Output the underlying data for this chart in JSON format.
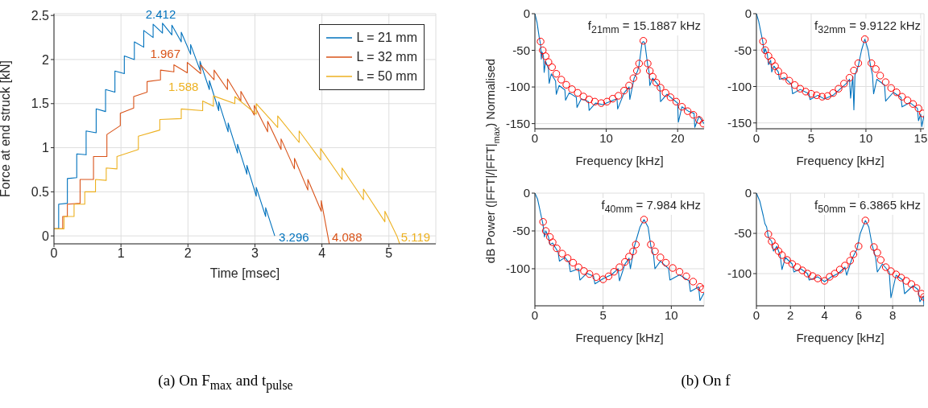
{
  "chart_data": [
    {
      "type": "line",
      "xlabel": "Time [msec]",
      "ylabel": "Force at end struck [kN]",
      "xlim": [
        0,
        5.7
      ],
      "xticks": [
        0,
        1,
        2,
        3,
        4,
        5
      ],
      "ylim": [
        -0.09,
        2.52
      ],
      "yticks": [
        0,
        0.5,
        1,
        1.5,
        2,
        2.5
      ],
      "grid": true,
      "legend": "top right",
      "series": [
        {
          "name": "L = 21 mm",
          "color": "#0072bd",
          "x": [
            0,
            0.07,
            0.07,
            0.2,
            0.2,
            0.34,
            0.34,
            0.48,
            0.48,
            0.63,
            0.63,
            0.77,
            0.77,
            0.91,
            0.91,
            1.05,
            1.05,
            1.2,
            1.2,
            1.34,
            1.34,
            1.48,
            1.48,
            1.62,
            1.62,
            1.76,
            1.76,
            1.9,
            1.9,
            2.04,
            2.04,
            2.18,
            2.18,
            2.32,
            2.32,
            2.46,
            2.46,
            2.6,
            2.6,
            2.74,
            2.74,
            2.88,
            2.88,
            3.02,
            3.02,
            3.16,
            3.16,
            3.296
          ],
          "values": [
            0.08,
            0.08,
            0.36,
            0.37,
            0.65,
            0.66,
            0.93,
            0.92,
            1.19,
            1.17,
            1.44,
            1.41,
            1.66,
            1.63,
            1.87,
            1.84,
            2.04,
            2.0,
            2.2,
            2.14,
            2.33,
            2.25,
            2.4,
            2.3,
            2.412,
            2.28,
            2.39,
            2.2,
            2.31,
            2.06,
            2.17,
            1.88,
            1.98,
            1.66,
            1.76,
            1.42,
            1.52,
            1.18,
            1.28,
            0.94,
            1.04,
            0.7,
            0.8,
            0.45,
            0.55,
            0.22,
            0.32,
            0
          ]
        },
        {
          "name": "L = 32 mm",
          "color": "#d95319",
          "x": [
            0,
            0.13,
            0.13,
            0.2,
            0.2,
            0.39,
            0.39,
            0.59,
            0.59,
            0.79,
            0.79,
            0.99,
            0.99,
            1.19,
            1.19,
            1.39,
            1.39,
            1.59,
            1.59,
            1.79,
            1.79,
            1.99,
            1.99,
            2.19,
            2.19,
            2.39,
            2.39,
            2.59,
            2.59,
            2.79,
            2.79,
            2.99,
            2.99,
            3.19,
            3.19,
            3.39,
            3.39,
            3.59,
            3.59,
            3.79,
            3.79,
            3.99,
            3.99,
            4.088,
            4.11
          ],
          "values": [
            0.08,
            0.08,
            0.22,
            0.22,
            0.36,
            0.37,
            0.64,
            0.64,
            0.9,
            0.9,
            1.15,
            1.25,
            1.39,
            1.45,
            1.58,
            1.63,
            1.75,
            1.77,
            1.88,
            1.86,
            1.94,
            1.85,
            1.967,
            1.84,
            1.94,
            1.77,
            1.88,
            1.66,
            1.78,
            1.53,
            1.64,
            1.37,
            1.48,
            1.18,
            1.3,
            0.98,
            1.1,
            0.76,
            0.88,
            0.52,
            0.64,
            0.28,
            0.4,
            0,
            -0.09
          ]
        },
        {
          "name": "L = 50 mm",
          "color": "#edb120",
          "x": [
            0,
            0.15,
            0.15,
            0.3,
            0.3,
            0.46,
            0.46,
            0.62,
            0.62,
            0.78,
            0.78,
            0.94,
            0.94,
            1.26,
            1.26,
            1.58,
            1.58,
            1.9,
            1.9,
            2.22,
            2.22,
            2.38,
            2.38,
            2.7,
            2.7,
            3.02,
            3.02,
            3.34,
            3.34,
            3.66,
            3.66,
            3.98,
            3.98,
            4.3,
            4.3,
            4.62,
            4.62,
            4.94,
            4.94,
            5.119,
            5.16
          ],
          "values": [
            0.08,
            0.08,
            0.22,
            0.22,
            0.36,
            0.36,
            0.5,
            0.5,
            0.64,
            0.63,
            0.77,
            0.76,
            0.9,
            0.98,
            1.13,
            1.2,
            1.32,
            1.33,
            1.44,
            1.42,
            1.53,
            1.47,
            1.588,
            1.5,
            1.58,
            1.38,
            1.5,
            1.23,
            1.36,
            1.06,
            1.19,
            0.86,
            0.99,
            0.64,
            0.77,
            0.41,
            0.53,
            0.16,
            0.28,
            0,
            -0.09
          ]
        }
      ],
      "annotations": [
        {
          "text": "2.412",
          "x": 1.62,
          "y": 2.412
        },
        {
          "text": "1.967",
          "x": 1.99,
          "y": 1.967
        },
        {
          "text": "1.588",
          "x": 2.38,
          "y": 1.588
        },
        {
          "text": "3.296",
          "x": 3.296,
          "y": 0
        },
        {
          "text": "4.088",
          "x": 4.088,
          "y": 0
        },
        {
          "text": "5.119",
          "x": 5.119,
          "y": 0
        },
        "(a)  On F$_{max}$ and t$_{pulse}$"
      ]
    },
    {
      "type": "line",
      "xlabel": "Frequency [kHz]",
      "ylabel": "dB Power (|FFT|/|FFT|$_{max}$) Normalised",
      "xlim": [
        0,
        23.7
      ],
      "xticks": [
        0,
        10,
        20
      ],
      "ylim": [
        -157,
        0
      ],
      "yticks": [
        -150,
        -100,
        -50,
        0
      ],
      "grid": true,
      "annotations": [
        "f$_{21mm}$ = 15.1887 kHz",
        "(b)  On f"
      ],
      "series": [
        {
          "color": "#0072bd",
          "x": [
            0,
            0.3,
            0.6,
            0.8,
            0.9,
            1.0,
            1.2,
            1.3,
            1.5,
            1.9,
            2.0,
            2.3,
            2.9,
            3.0,
            3.4,
            4.2,
            4.3,
            4.8,
            5.8,
            5.9,
            6.5,
            7.5,
            7.6,
            8.5,
            9.5,
            10.5,
            11.5,
            11.6,
            12.5,
            13.2,
            13.3,
            13.9,
            14.4,
            14.6,
            15.0,
            15.19,
            15.4,
            15.8,
            16.0,
            16.1,
            16.5,
            17.5,
            17.6,
            18.5,
            19.5,
            20.0,
            20.1,
            20.6,
            21.5,
            22.3,
            22.4,
            23.0,
            23.7
          ],
          "values": [
            0,
            -12,
            -32,
            -42,
            -62,
            -52,
            -58,
            -80,
            -65,
            -75,
            -95,
            -82,
            -92,
            -110,
            -98,
            -104,
            -118,
            -108,
            -114,
            -128,
            -116,
            -120,
            -132,
            -122,
            -124,
            -120,
            -116,
            -130,
            -108,
            -100,
            -117,
            -88,
            -78,
            -70,
            -40,
            -38,
            -40,
            -70,
            -80,
            -98,
            -88,
            -100,
            -120,
            -110,
            -118,
            -122,
            -148,
            -127,
            -133,
            -136,
            -155,
            -140,
            -150
          ]
        },
        {
          "type": "scatter",
          "marker": "circle",
          "color": "#ff0000",
          "x": [
            0.8,
            1.1,
            1.5,
            1.9,
            2.4,
            3.0,
            3.7,
            4.4,
            5.2,
            6.0,
            6.8,
            7.6,
            8.4,
            9.3,
            10.1,
            10.9,
            11.7,
            12.5,
            13.2,
            13.8,
            14.3,
            14.6,
            15.2,
            15.8,
            16.1,
            16.5,
            17.0,
            17.6,
            18.3,
            19.0,
            19.8,
            20.6,
            21.4,
            22.2,
            23.0,
            23.6
          ],
          "values": [
            -38,
            -50,
            -58,
            -66,
            -73,
            -82,
            -90,
            -97,
            -103,
            -108,
            -113,
            -117,
            -120,
            -122,
            -120,
            -116,
            -112,
            -105,
            -98,
            -88,
            -78,
            -68,
            -37,
            -68,
            -78,
            -86,
            -94,
            -101,
            -108,
            -114,
            -120,
            -127,
            -133,
            -138,
            -145,
            -150
          ]
        }
      ]
    },
    {
      "type": "line",
      "xlabel": "Frequency [kHz]",
      "xlim": [
        0,
        15.3
      ],
      "xticks": [
        0,
        5,
        10,
        15
      ],
      "ylim": [
        -158,
        0
      ],
      "yticks": [
        -150,
        -100,
        -50,
        0
      ],
      "grid": true,
      "annotations": [
        "f$_{32mm}$ = 9.9122 kHz"
      ],
      "series": [
        {
          "color": "#0072bd",
          "x": [
            0,
            0.2,
            0.4,
            0.6,
            0.7,
            0.8,
            1.0,
            1.1,
            1.3,
            1.4,
            1.6,
            2.0,
            2.1,
            2.6,
            3.2,
            3.3,
            4.0,
            4.8,
            4.9,
            5.6,
            6.2,
            7.0,
            7.6,
            8.2,
            8.5,
            8.6,
            8.8,
            8.9,
            9.0,
            9.3,
            9.6,
            9.9,
            10.2,
            10.4,
            10.6,
            10.7,
            11.0,
            11.7,
            11.8,
            12.5,
            13.2,
            13.3,
            14.0,
            14.7,
            14.8,
            15.0,
            15.1,
            15.3
          ],
          "values": [
            0,
            -10,
            -25,
            -40,
            -55,
            -48,
            -56,
            -70,
            -64,
            -80,
            -72,
            -80,
            -90,
            -88,
            -97,
            -110,
            -104,
            -110,
            -118,
            -112,
            -117,
            -112,
            -104,
            -96,
            -90,
            -116,
            -86,
            -132,
            -84,
            -72,
            -50,
            -35,
            -50,
            -70,
            -84,
            -110,
            -90,
            -98,
            -120,
            -108,
            -115,
            -128,
            -122,
            -130,
            -147,
            -138,
            -155,
            -140
          ]
        },
        {
          "type": "scatter",
          "marker": "circle",
          "color": "#ff0000",
          "x": [
            0.6,
            0.8,
            1.1,
            1.4,
            1.7,
            2.0,
            2.5,
            3.0,
            3.5,
            4.0,
            4.5,
            5.0,
            5.5,
            6.0,
            6.5,
            7.0,
            7.5,
            8.0,
            8.5,
            8.9,
            9.3,
            9.9,
            10.5,
            10.9,
            11.3,
            11.8,
            12.3,
            12.8,
            13.3,
            13.8,
            14.3,
            14.8,
            15.2
          ],
          "values": [
            -38,
            -50,
            -58,
            -65,
            -72,
            -79,
            -86,
            -92,
            -98,
            -103,
            -107,
            -110,
            -112,
            -114,
            -113,
            -109,
            -103,
            -96,
            -88,
            -78,
            -68,
            -35,
            -68,
            -76,
            -85,
            -94,
            -102,
            -108,
            -114,
            -119,
            -124,
            -130,
            -137
          ]
        }
      ]
    },
    {
      "type": "line",
      "xlabel": "Frequency [kHz]",
      "xlim": [
        0,
        12.4
      ],
      "xticks": [
        0,
        5,
        10
      ],
      "ylim": [
        -149,
        0
      ],
      "yticks": [
        -100,
        -50,
        0
      ],
      "grid": true,
      "annotations": [
        "f$_{40mm}$ = 7.984 kHz"
      ],
      "series": [
        {
          "color": "#0072bd",
          "x": [
            0,
            0.2,
            0.4,
            0.6,
            0.7,
            0.8,
            1.0,
            1.1,
            1.3,
            1.7,
            1.8,
            2.2,
            2.5,
            2.6,
            3.2,
            3.3,
            3.8,
            4.3,
            4.4,
            5.0,
            5.6,
            6.1,
            6.2,
            6.6,
            6.9,
            7.0,
            7.3,
            7.7,
            8.0,
            8.3,
            8.5,
            8.7,
            8.8,
            9.2,
            9.8,
            9.9,
            10.6,
            11.3,
            11.4,
            12.0,
            12.1,
            12.4
          ],
          "values": [
            0,
            -8,
            -25,
            -42,
            -58,
            -50,
            -58,
            -68,
            -66,
            -78,
            -90,
            -85,
            -92,
            -104,
            -100,
            -115,
            -106,
            -110,
            -120,
            -113,
            -108,
            -100,
            -116,
            -94,
            -86,
            -100,
            -70,
            -45,
            -35,
            -45,
            -70,
            -82,
            -100,
            -90,
            -100,
            -115,
            -108,
            -116,
            -130,
            -124,
            -142,
            -132
          ]
        },
        {
          "type": "scatter",
          "marker": "circle",
          "color": "#ff0000",
          "x": [
            0.6,
            0.8,
            1.1,
            1.3,
            1.6,
            2.0,
            2.4,
            2.8,
            3.2,
            3.6,
            4.0,
            4.5,
            5.0,
            5.4,
            5.8,
            6.2,
            6.6,
            6.9,
            7.2,
            7.4,
            8.0,
            8.5,
            8.8,
            9.2,
            9.6,
            10.1,
            10.6,
            11.1,
            11.6,
            12.1,
            12.3
          ],
          "values": [
            -38,
            -50,
            -58,
            -65,
            -73,
            -80,
            -86,
            -92,
            -98,
            -103,
            -107,
            -111,
            -114,
            -110,
            -104,
            -98,
            -91,
            -84,
            -77,
            -68,
            -35,
            -68,
            -77,
            -85,
            -92,
            -99,
            -104,
            -110,
            -117,
            -124,
            -127
          ]
        }
      ]
    },
    {
      "type": "line",
      "xlabel": "Frequency [kHz]",
      "xlim": [
        0,
        9.84
      ],
      "xticks": [
        0,
        2,
        4,
        6,
        8
      ],
      "ylim": [
        -140,
        0
      ],
      "yticks": [
        -100,
        -50,
        0
      ],
      "grid": true,
      "annotations": [
        "f$_{50mm}$ = 6.3865 kHz"
      ],
      "series": [
        {
          "color": "#0072bd",
          "x": [
            0,
            0.2,
            0.4,
            0.5,
            0.6,
            0.7,
            0.9,
            1.0,
            1.2,
            1.4,
            1.5,
            1.7,
            2.1,
            2.2,
            2.6,
            3.0,
            3.1,
            3.6,
            4.0,
            4.4,
            4.8,
            5.2,
            5.3,
            5.6,
            5.9,
            6.1,
            6.4,
            6.6,
            6.8,
            7.0,
            7.1,
            7.4,
            7.8,
            7.9,
            8.2,
            8.6,
            8.7,
            9.2,
            9.5,
            9.6,
            9.8,
            9.84
          ],
          "values": [
            0,
            -10,
            -28,
            -38,
            -42,
            -55,
            -60,
            -72,
            -66,
            -78,
            -95,
            -80,
            -88,
            -98,
            -94,
            -100,
            -108,
            -104,
            -110,
            -104,
            -100,
            -92,
            -102,
            -82,
            -70,
            -50,
            -34,
            -42,
            -65,
            -80,
            -98,
            -88,
            -98,
            -130,
            -102,
            -108,
            -125,
            -115,
            -120,
            -135,
            -128,
            -140
          ]
        },
        {
          "type": "scatter",
          "marker": "circle",
          "color": "#ff0000",
          "x": [
            0.7,
            0.9,
            1.1,
            1.3,
            1.5,
            1.8,
            2.1,
            2.4,
            2.7,
            3.0,
            3.3,
            3.6,
            4.0,
            4.3,
            4.6,
            4.9,
            5.2,
            5.5,
            5.7,
            6.0,
            6.4,
            6.9,
            7.1,
            7.3,
            7.6,
            7.9,
            8.2,
            8.5,
            8.8,
            9.1,
            9.4,
            9.7,
            9.84
          ],
          "values": [
            -51,
            -60,
            -66,
            -72,
            -77,
            -83,
            -88,
            -92,
            -96,
            -100,
            -103,
            -106,
            -109,
            -104,
            -100,
            -95,
            -90,
            -84,
            -76,
            -66,
            -34,
            -67,
            -74,
            -83,
            -92,
            -97,
            -101,
            -105,
            -109,
            -113,
            -118,
            -125,
            -129
          ]
        }
      ]
    }
  ]
}
